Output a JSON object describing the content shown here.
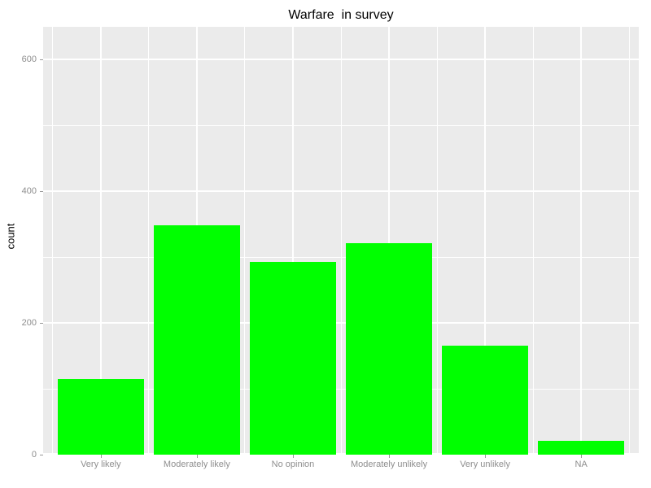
{
  "chart_data": {
    "type": "bar",
    "title": "Warfare  in survey",
    "ylabel": "count",
    "xlabel": "",
    "categories": [
      "Very likely",
      "Moderately likely",
      "No opinion",
      "Moderately unlikely",
      "Very unlikely",
      "NA"
    ],
    "values": [
      115,
      348,
      293,
      321,
      166,
      21
    ],
    "ylim": [
      0,
      650
    ],
    "yticks": [
      0,
      200,
      400,
      600
    ],
    "yticks_minor": [
      100,
      300,
      500
    ],
    "grid": "on",
    "legend": "none",
    "bar_width_ratio": 0.9,
    "colors": {
      "bar_fill": "#00FF00",
      "panel_bg": "#EBEBEB",
      "grid_major": "#FFFFFF",
      "grid_minor": "#FFFFFF",
      "tick_label": "#8E8E8E",
      "axis_tick": "#999999",
      "title_text": "#000000",
      "background": "#FFFFFF"
    }
  }
}
